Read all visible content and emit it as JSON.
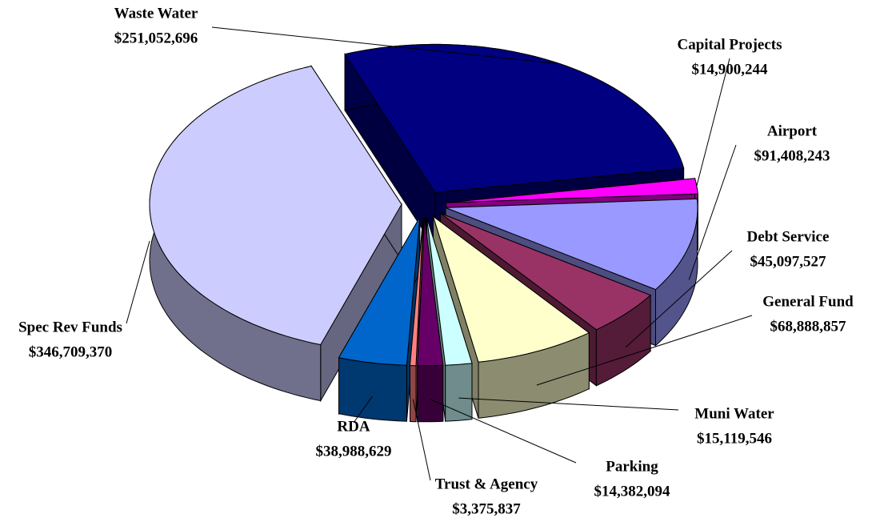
{
  "chart_data": {
    "type": "pie3d",
    "categories": [
      "Waste Water",
      "Capital Projects",
      "Airport",
      "Debt Service",
      "General Fund",
      "Muni Water",
      "Parking",
      "Trust & Agency",
      "RDA",
      "Spec Rev Funds"
    ],
    "values": [
      251052696,
      14900244,
      91408243,
      45097527,
      68888857,
      15119546,
      14382094,
      3375837,
      38988629,
      346709370
    ],
    "value_labels": [
      "$251,052,696",
      "$14,900,244",
      "$91,408,243",
      "$45,097,527",
      "$68,888,857",
      "$15,119,546",
      "$14,382,094",
      "$3,375,837",
      "$38,988,629",
      "$346,709,370"
    ],
    "colors": [
      "#000080",
      "#ff00ff",
      "#9999ff",
      "#993366",
      "#ffffcc",
      "#ccffff",
      "#660066",
      "#ff8080",
      "#0066cc",
      "#ccccff"
    ]
  }
}
